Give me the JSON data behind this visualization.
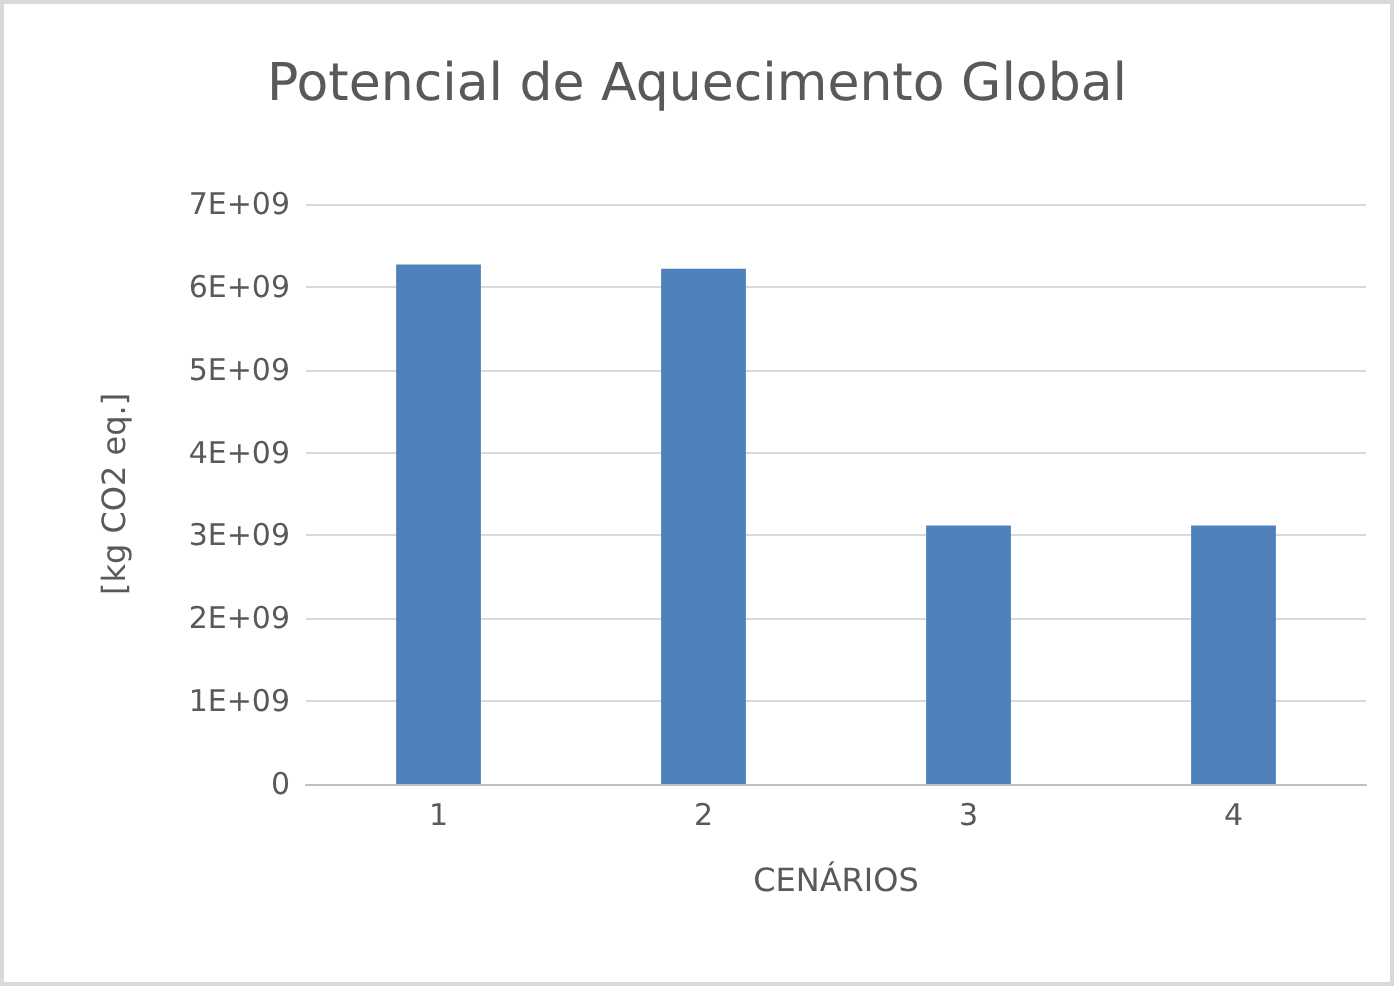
{
  "chart_data": {
    "type": "bar",
    "title": "Potencial de Aquecimento Global",
    "xlabel": "CENÁRIOS",
    "ylabel": "[kg CO2 eq.]",
    "categories": [
      "1",
      "2",
      "3",
      "4"
    ],
    "values": [
      6270000000,
      6220000000,
      3120000000,
      3120000000
    ],
    "color": "#4f81bd",
    "ylim": [
      0,
      7000000000
    ],
    "yticks": [
      0,
      {
        "value": 1000000000,
        "label": "1E+09"
      },
      {
        "value": 2000000000,
        "label": "2E+09"
      },
      {
        "value": 3000000000,
        "label": "3E+09"
      },
      {
        "value": 4000000000,
        "label": "4E+09"
      },
      {
        "value": 5000000000,
        "label": "5E+09"
      },
      {
        "value": 6000000000,
        "label": "6E+09"
      },
      {
        "value": 7000000000,
        "label": "7E+09"
      }
    ],
    "grid": "y"
  }
}
